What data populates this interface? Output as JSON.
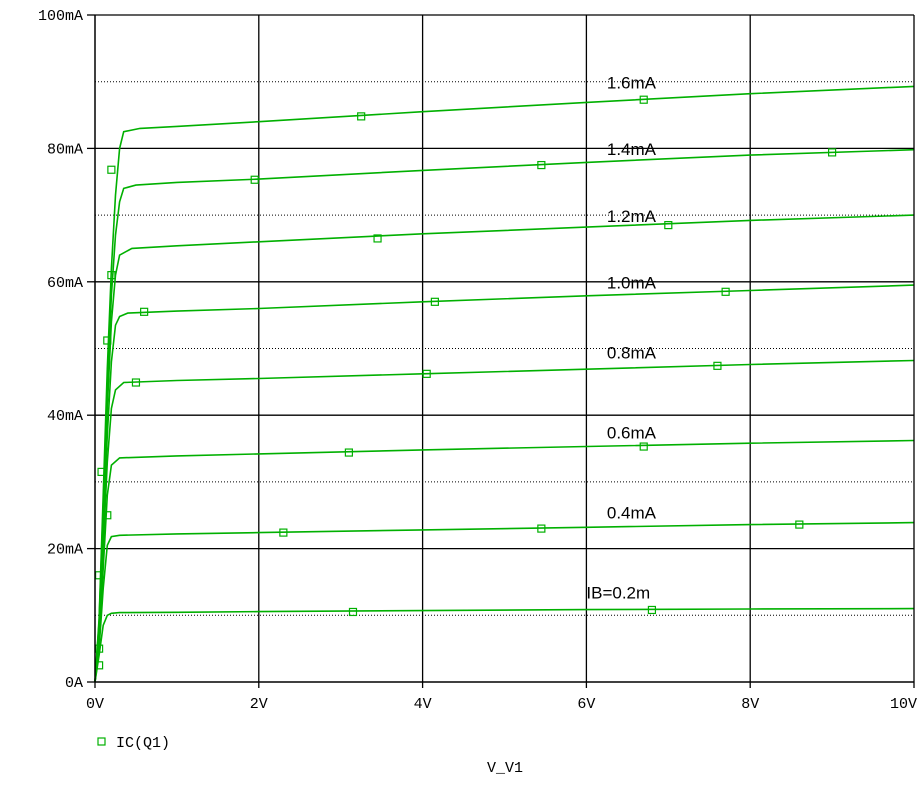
{
  "colors": {
    "trace": "#00b000",
    "axis": "#000000",
    "grid": "#000000"
  },
  "chart_data": {
    "type": "line",
    "xlabel": "V_V1",
    "ylabel": "",
    "xlim": [
      0,
      10
    ],
    "ylim": [
      0,
      100
    ],
    "x_ticks": [
      {
        "value": 0,
        "label": "0V"
      },
      {
        "value": 2,
        "label": "2V"
      },
      {
        "value": 4,
        "label": "4V"
      },
      {
        "value": 6,
        "label": "6V"
      },
      {
        "value": 8,
        "label": "8V"
      },
      {
        "value": 10,
        "label": "10V"
      }
    ],
    "y_ticks": [
      {
        "value": 0,
        "label": "0A"
      },
      {
        "value": 20,
        "label": "20mA"
      },
      {
        "value": 40,
        "label": "40mA"
      },
      {
        "value": 60,
        "label": "60mA"
      },
      {
        "value": 80,
        "label": "80mA"
      },
      {
        "value": 100,
        "label": "100mA"
      }
    ],
    "dotted_grid_y": [
      10,
      30,
      50,
      70,
      90
    ],
    "legend": {
      "position": "bottom-left",
      "marker": "square",
      "label": "IC(Q1)"
    },
    "series": [
      {
        "curve_label": "IB=0.2m",
        "label_at": [
          6.0,
          12.5
        ],
        "knee": 0.15,
        "sat": 10.3,
        "end": 11.0,
        "markers": [
          [
            3.15,
            10.5
          ],
          [
            6.8,
            10.8
          ]
        ],
        "x": [
          0,
          0.05,
          0.1,
          0.15,
          0.2,
          0.3,
          1,
          2,
          4,
          6,
          8,
          10
        ],
        "y": [
          0,
          4.0,
          8.5,
          10.0,
          10.3,
          10.4,
          10.45,
          10.55,
          10.7,
          10.85,
          10.95,
          11.0
        ]
      },
      {
        "curve_label": "0.4mA",
        "label_at": [
          6.25,
          24.5
        ],
        "knee": 0.15,
        "sat": 22.0,
        "end": 23.9,
        "markers": [
          [
            0.05,
            5.0
          ],
          [
            0.15,
            25.0
          ],
          [
            2.3,
            22.4
          ],
          [
            5.45,
            23.0
          ],
          [
            8.6,
            23.6
          ]
        ],
        "x": [
          0,
          0.05,
          0.1,
          0.15,
          0.2,
          0.3,
          1,
          2,
          4,
          6,
          8,
          10
        ],
        "y": [
          0,
          5.0,
          14.0,
          20.5,
          21.8,
          22.0,
          22.2,
          22.4,
          22.8,
          23.2,
          23.6,
          23.9
        ]
      },
      {
        "curve_label": "0.6mA",
        "label_at": [
          6.25,
          36.5
        ],
        "knee": 0.18,
        "sat": 33.6,
        "end": 36.2,
        "markers": [
          [
            0.05,
            16.0
          ],
          [
            0.08,
            31.5
          ],
          [
            3.1,
            34.4
          ],
          [
            6.7,
            35.3
          ]
        ],
        "x": [
          0,
          0.05,
          0.1,
          0.15,
          0.2,
          0.3,
          1,
          2,
          4,
          6,
          8,
          10
        ],
        "y": [
          0,
          6.0,
          17.0,
          28.0,
          32.5,
          33.6,
          33.9,
          34.2,
          34.8,
          35.3,
          35.8,
          36.2
        ]
      },
      {
        "curve_label": "0.8mA",
        "label_at": [
          6.25,
          48.5
        ],
        "knee": 0.2,
        "sat": 44.9,
        "end": 48.2,
        "markers": [
          [
            0.05,
            2.5
          ],
          [
            0.5,
            44.9
          ],
          [
            4.05,
            46.2
          ],
          [
            7.6,
            47.4
          ]
        ],
        "x": [
          0,
          0.05,
          0.1,
          0.15,
          0.2,
          0.25,
          0.35,
          1,
          2,
          4,
          6,
          8,
          10
        ],
        "y": [
          0,
          7.0,
          20.0,
          33.0,
          41.0,
          43.8,
          44.9,
          45.2,
          45.5,
          46.2,
          46.9,
          47.6,
          48.2
        ]
      },
      {
        "curve_label": "1.0mA",
        "label_at": [
          6.25,
          59.0
        ],
        "knee": 0.22,
        "sat": 55.3,
        "end": 59.5,
        "markers": [
          [
            0.15,
            51.2
          ],
          [
            0.6,
            55.5
          ],
          [
            4.15,
            57.0
          ],
          [
            7.7,
            58.5
          ]
        ],
        "x": [
          0,
          0.05,
          0.1,
          0.15,
          0.2,
          0.25,
          0.3,
          0.4,
          1,
          2,
          4,
          6,
          8,
          10
        ],
        "y": [
          0,
          8.0,
          23.0,
          37.0,
          48.0,
          53.5,
          54.8,
          55.3,
          55.6,
          56.0,
          57.0,
          57.9,
          58.7,
          59.5
        ]
      },
      {
        "curve_label": "1.2mA",
        "label_at": [
          6.25,
          69.0
        ],
        "knee": 0.24,
        "sat": 65.0,
        "end": 70.0,
        "markers": [
          [
            0.2,
            61.0
          ],
          [
            3.45,
            66.5
          ],
          [
            7.0,
            68.5
          ]
        ],
        "x": [
          0,
          0.05,
          0.1,
          0.15,
          0.2,
          0.25,
          0.3,
          0.45,
          1,
          2,
          4,
          6,
          8,
          10
        ],
        "y": [
          0,
          8.5,
          25.0,
          41.0,
          54.0,
          61.0,
          64.0,
          65.0,
          65.4,
          66.0,
          67.2,
          68.2,
          69.2,
          70.0
        ]
      },
      {
        "curve_label": "1.4mA",
        "label_at": [
          6.25,
          79.0
        ],
        "knee": 0.26,
        "sat": 74.5,
        "end": 79.8,
        "markers": [
          [
            1.95,
            75.3
          ],
          [
            5.45,
            77.5
          ],
          [
            9.0,
            79.4
          ]
        ],
        "x": [
          0,
          0.05,
          0.1,
          0.15,
          0.2,
          0.25,
          0.3,
          0.35,
          0.5,
          1,
          2,
          4,
          6,
          8,
          10
        ],
        "y": [
          0,
          9.0,
          26.5,
          44.0,
          58.0,
          67.0,
          72.0,
          74.0,
          74.5,
          74.9,
          75.4,
          76.7,
          77.9,
          79.0,
          79.8
        ]
      },
      {
        "curve_label": "1.6mA",
        "label_at": [
          6.25,
          89.0
        ],
        "knee": 0.28,
        "sat": 83.0,
        "end": 89.3,
        "markers": [
          [
            0.2,
            76.8
          ],
          [
            3.25,
            84.8
          ],
          [
            6.7,
            87.3
          ]
        ],
        "x": [
          0,
          0.05,
          0.1,
          0.15,
          0.2,
          0.25,
          0.3,
          0.35,
          0.55,
          1,
          2,
          4,
          6,
          8,
          10
        ],
        "y": [
          0,
          9.5,
          28.0,
          47.0,
          62.0,
          73.0,
          80.0,
          82.5,
          83.0,
          83.3,
          84.0,
          85.5,
          86.9,
          88.2,
          89.3
        ]
      }
    ]
  }
}
